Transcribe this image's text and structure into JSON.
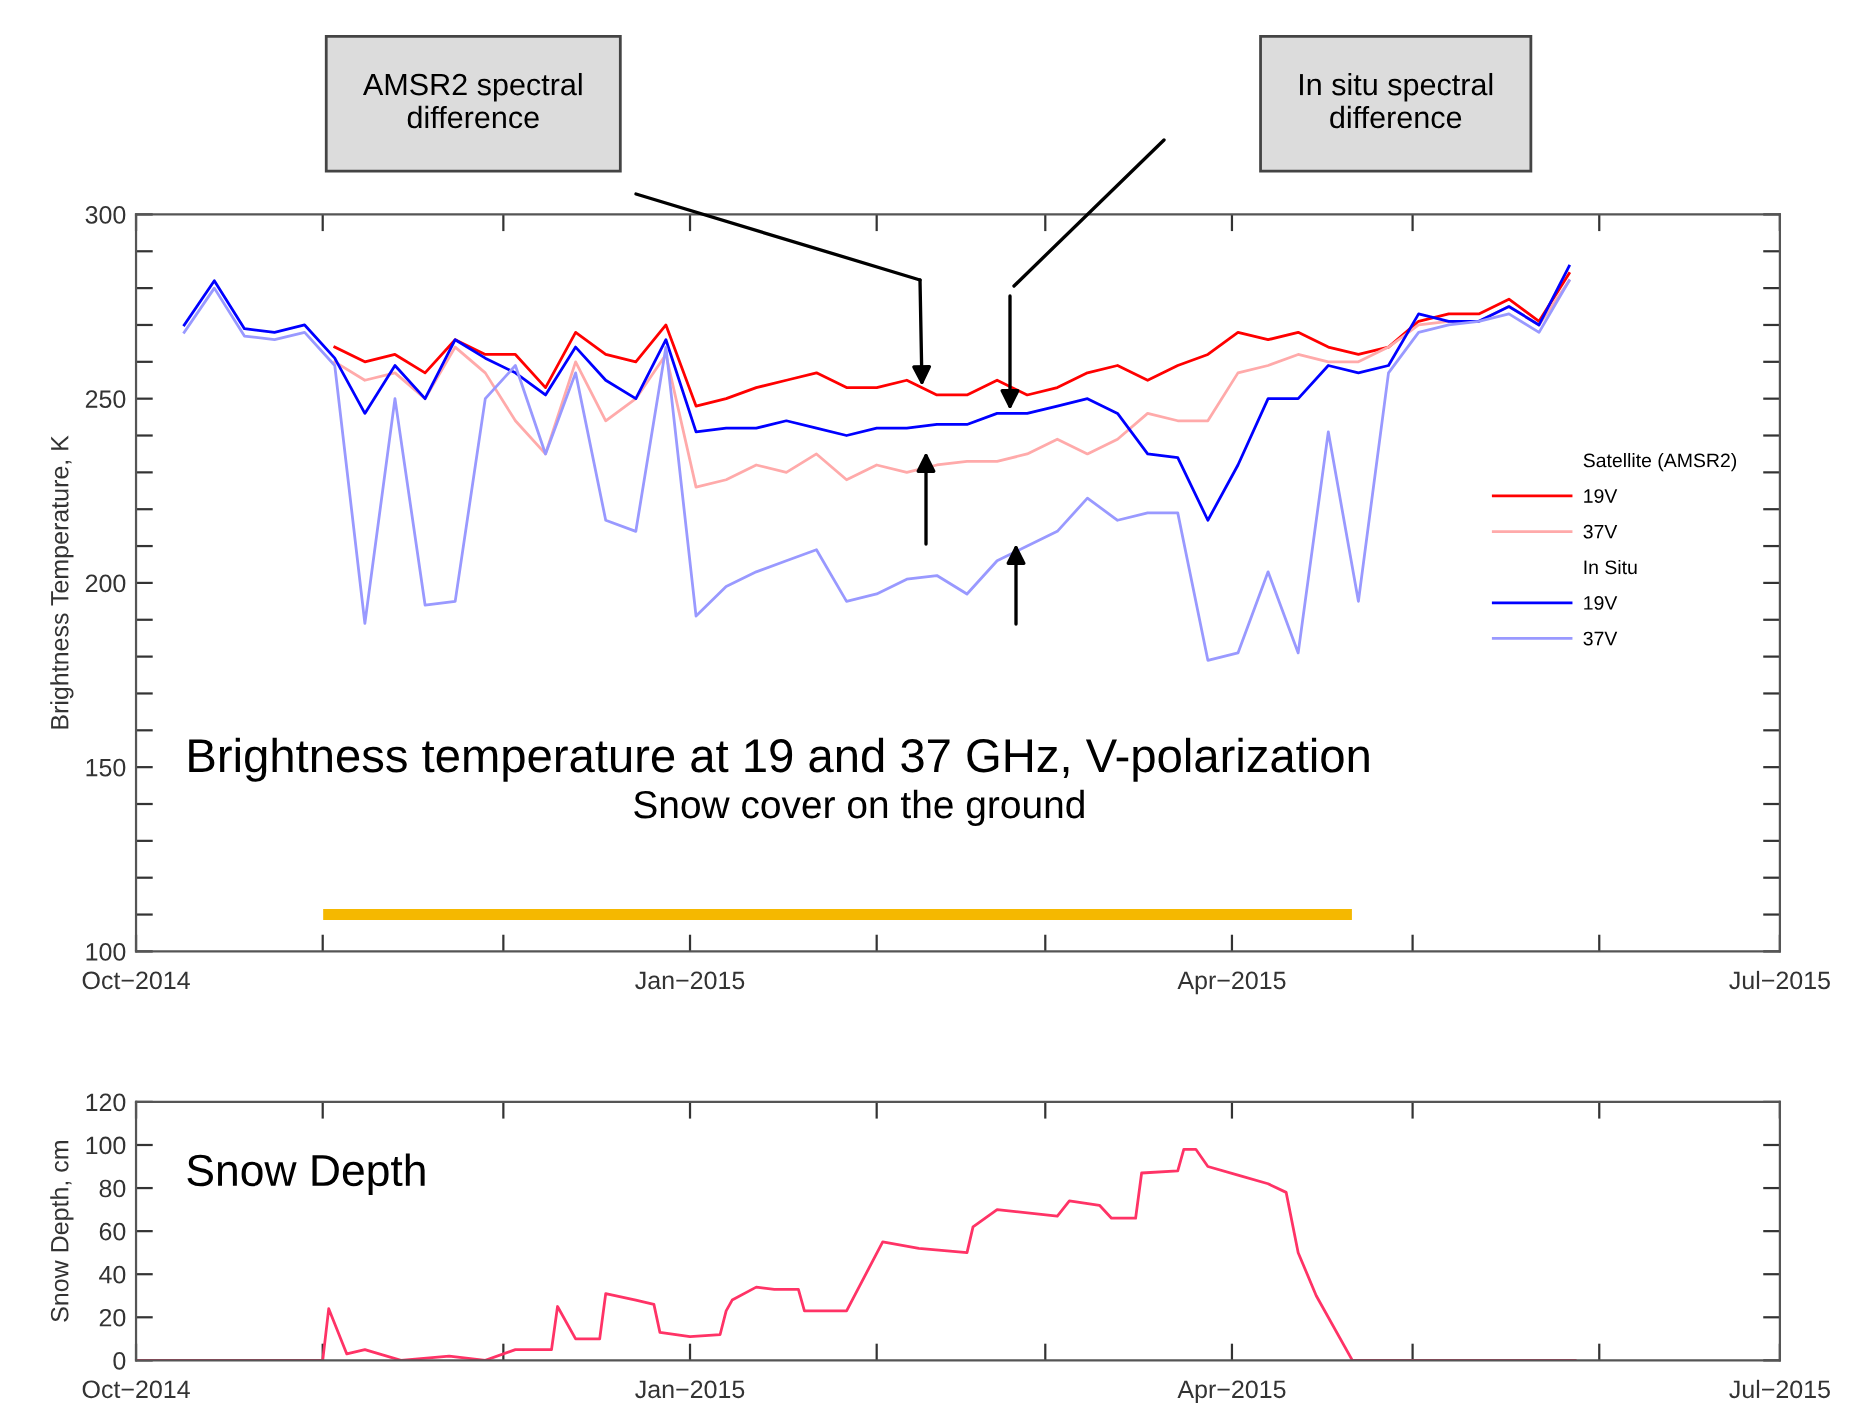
{
  "chart_data": [
    {
      "type": "line",
      "title": "Brightness temperature at 19 and 37 GHz, V-polarization",
      "ylabel": "Brightness Temperature, K",
      "x": [
        "2014-10-09",
        "2014-10-14",
        "2014-10-19",
        "2014-10-24",
        "2014-10-29",
        "2014-11-03",
        "2014-11-08",
        "2014-11-13",
        "2014-11-18",
        "2014-11-23",
        "2014-11-28",
        "2014-12-03",
        "2014-12-08",
        "2014-12-13",
        "2014-12-18",
        "2014-12-23",
        "2014-12-28",
        "2015-01-02",
        "2015-01-07",
        "2015-01-12",
        "2015-01-17",
        "2015-01-22",
        "2015-01-27",
        "2015-02-01",
        "2015-02-06",
        "2015-02-11",
        "2015-02-16",
        "2015-02-21",
        "2015-02-26",
        "2015-03-03",
        "2015-03-08",
        "2015-03-13",
        "2015-03-18",
        "2015-03-23",
        "2015-03-28",
        "2015-04-02",
        "2015-04-07",
        "2015-04-12",
        "2015-04-17",
        "2015-04-22",
        "2015-04-27",
        "2015-05-02",
        "2015-05-07",
        "2015-05-12",
        "2015-05-17",
        "2015-05-22",
        "2015-05-27"
      ],
      "series": [
        {
          "name": "19V",
          "color": "#ff0000",
          "values": [
            null,
            null,
            null,
            null,
            null,
            264,
            260,
            262,
            257,
            266,
            262,
            262,
            253,
            268,
            262,
            260,
            270,
            248,
            250,
            253,
            255,
            257,
            253,
            253,
            255,
            251,
            251,
            255,
            251,
            253,
            257,
            259,
            255,
            259,
            262,
            268,
            266,
            268,
            264,
            262,
            264,
            271,
            273,
            273,
            277,
            271,
            284
          ]
        },
        {
          "name": "37V",
          "color": "#ffaaaa",
          "values": [
            null,
            null,
            null,
            null,
            null,
            260,
            255,
            257,
            250,
            264,
            257,
            244,
            235,
            260,
            244,
            250,
            262,
            226,
            228,
            232,
            230,
            235,
            228,
            232,
            230,
            232,
            233,
            233,
            235,
            239,
            235,
            239,
            246,
            244,
            244,
            257,
            259,
            262,
            260,
            260,
            264,
            270,
            271,
            271,
            275,
            270,
            282
          ]
        },
        {
          "name": "19V",
          "color": "#0000ff",
          "values": [
            270,
            282,
            269,
            268,
            270,
            261,
            246,
            259,
            250,
            266,
            261,
            257,
            251,
            264,
            255,
            250,
            266,
            241,
            242,
            242,
            244,
            242,
            240,
            242,
            242,
            243,
            243,
            246,
            246,
            248,
            250,
            246,
            235,
            234,
            217,
            232,
            250,
            250,
            259,
            257,
            259,
            273,
            271,
            271,
            275,
            270,
            286
          ]
        },
        {
          "name": "37V",
          "color": "#9999ff",
          "values": [
            268,
            280,
            267,
            266,
            268,
            259,
            189,
            250,
            194,
            195,
            250,
            259,
            235,
            257,
            217,
            214,
            264,
            191,
            199,
            203,
            206,
            209,
            195,
            197,
            201,
            202,
            197,
            206,
            210,
            214,
            223,
            217,
            219,
            219,
            179,
            181,
            203,
            181,
            241,
            195,
            257,
            268,
            270,
            271,
            273,
            268,
            282
          ]
        },
        {
          "type": "line",
          "color": "#f5b800",
          "x": [
            "2014-11-02",
            "2015-04-20"
          ],
          "values": [
            110,
            110
          ]
        }
      ],
      "annotations": [
        "Satellite (AMSR2)",
        "In Situ",
        "AMSR2 spectral\ndifference",
        "In situ spectral\ndifference",
        "Snow cover on the ground"
      ],
      "xlim": [
        "2014-10-01",
        "2015-07-01"
      ],
      "xticks": [
        {
          "value": "2014-10-01",
          "label": "Oct−2014"
        },
        {
          "value": "2014-11-01",
          "label": null
        },
        {
          "value": "2014-12-01",
          "label": null
        },
        {
          "value": "2015-01-01",
          "label": "Jan−2015"
        },
        {
          "value": "2015-02-01",
          "label": null
        },
        {
          "value": "2015-03-01",
          "label": null
        },
        {
          "value": "2015-04-01",
          "label": "Apr−2015"
        },
        {
          "value": "2015-05-01",
          "label": null
        },
        {
          "value": "2015-06-01",
          "label": null
        },
        {
          "value": "2015-07-01",
          "label": "Jul−2015"
        }
      ],
      "ylim": [
        100,
        300
      ],
      "yticks": [
        100,
        {
          "value": 110,
          "label": null
        },
        {
          "value": 120,
          "label": null
        },
        {
          "value": 130,
          "label": null
        },
        {
          "value": 140,
          "label": null
        },
        150,
        {
          "value": 160,
          "label": null
        },
        {
          "value": 170,
          "label": null
        },
        {
          "value": 180,
          "label": null
        },
        {
          "value": 190,
          "label": null
        },
        200,
        {
          "value": 210,
          "label": null
        },
        {
          "value": 220,
          "label": null
        },
        {
          "value": 230,
          "label": null
        },
        {
          "value": 240,
          "label": null
        },
        250,
        {
          "value": 260,
          "label": null
        },
        {
          "value": 270,
          "label": null
        },
        {
          "value": 280,
          "label": null
        },
        {
          "value": 290,
          "label": null
        },
        300
      ],
      "legend": "right",
      "grid": false
    },
    {
      "type": "line",
      "title": "Snow Depth",
      "ylabel": "Snow Depth, cm",
      "x": [
        "2014-10-01",
        "2014-11-01",
        "2014-11-02",
        "2014-11-05",
        "2014-11-08",
        "2014-11-14",
        "2014-11-22",
        "2014-11-28",
        "2014-12-03",
        "2014-12-09",
        "2014-12-10",
        "2014-12-13",
        "2014-12-17",
        "2014-12-18",
        "2014-12-23",
        "2014-12-26",
        "2014-12-27",
        "2015-01-01",
        "2015-01-06",
        "2015-01-07",
        "2015-01-08",
        "2015-01-12",
        "2015-01-15",
        "2015-01-19",
        "2015-01-20",
        "2015-01-27",
        "2015-02-02",
        "2015-02-08",
        "2015-02-16",
        "2015-02-17",
        "2015-02-21",
        "2015-03-03",
        "2015-03-05",
        "2015-03-10",
        "2015-03-12",
        "2015-03-16",
        "2015-03-17",
        "2015-03-23",
        "2015-03-24",
        "2015-03-26",
        "2015-03-28",
        "2015-04-02",
        "2015-04-07",
        "2015-04-10",
        "2015-04-12",
        "2015-04-15",
        "2015-04-21",
        "2015-05-28"
      ],
      "series": [
        {
          "color": "#ff3366",
          "values": [
            0,
            0,
            24,
            3,
            5,
            0,
            2,
            0,
            5,
            5,
            25,
            10,
            10,
            31,
            28,
            26,
            13,
            11,
            12,
            23,
            28,
            34,
            33,
            33,
            23,
            23,
            55,
            52,
            50,
            62,
            70,
            67,
            74,
            72,
            66,
            66,
            87,
            88,
            98,
            98,
            90,
            86,
            82,
            78,
            50,
            30,
            0,
            0
          ]
        }
      ],
      "xlim": [
        "2014-10-01",
        "2015-07-01"
      ],
      "xticks": [
        {
          "value": "2014-10-01",
          "label": "Oct−2014"
        },
        {
          "value": "2014-11-01",
          "label": null
        },
        {
          "value": "2014-12-01",
          "label": null
        },
        {
          "value": "2015-01-01",
          "label": "Jan−2015"
        },
        {
          "value": "2015-02-01",
          "label": null
        },
        {
          "value": "2015-03-01",
          "label": null
        },
        {
          "value": "2015-04-01",
          "label": "Apr−2015"
        },
        {
          "value": "2015-05-01",
          "label": null
        },
        {
          "value": "2015-06-01",
          "label": null
        },
        {
          "value": "2015-07-01",
          "label": "Jul−2015"
        }
      ],
      "ylim": [
        0,
        120
      ],
      "yticks": [
        0,
        20,
        40,
        60,
        80,
        100,
        120
      ],
      "grid": false
    }
  ]
}
